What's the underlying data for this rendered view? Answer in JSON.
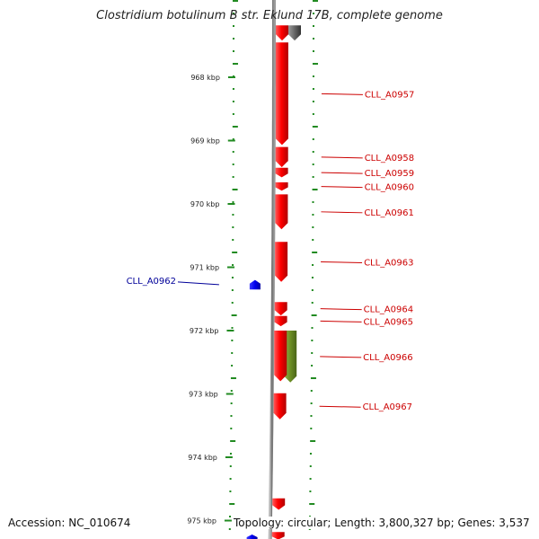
{
  "title": "Clostridium botulinum B str. Eklund 17B, complete genome",
  "footer": {
    "accession": "Accession: NC_010674",
    "summary": "Topology: circular; Length: 3,800,327 bp; Genes: 3,537"
  },
  "colors": {
    "forward_gene": "#ff0000",
    "reverse_gene": "#0000ee",
    "other_gene": "#6b8e23",
    "forward_label": "#cc0000",
    "reverse_label": "#000099",
    "tick": "#228b22",
    "backbone": "#777777"
  },
  "ticks": [
    "968 kbp",
    "969 kbp",
    "970 kbp",
    "971 kbp",
    "972 kbp",
    "973 kbp",
    "974 kbp",
    "975 kbp"
  ],
  "genes": [
    {
      "label": "",
      "strand": "forward",
      "color": "red",
      "start_kbp": 967.18,
      "end_kbp": 967.42
    },
    {
      "label": "",
      "strand": "forward",
      "color": "grey",
      "start_kbp": 967.18,
      "end_kbp": 967.42
    },
    {
      "label": "CLL_A0957",
      "strand": "forward",
      "color": "red",
      "start_kbp": 967.45,
      "end_kbp": 969.07
    },
    {
      "label": "CLL_A0958",
      "strand": "forward",
      "color": "red",
      "start_kbp": 969.1,
      "end_kbp": 969.42
    },
    {
      "label": "CLL_A0959",
      "strand": "forward",
      "color": "red",
      "start_kbp": 969.43,
      "end_kbp": 969.58
    },
    {
      "label": "CLL_A0960",
      "strand": "forward",
      "color": "red",
      "start_kbp": 969.66,
      "end_kbp": 969.79
    },
    {
      "label": "CLL_A0961",
      "strand": "forward",
      "color": "red",
      "start_kbp": 969.85,
      "end_kbp": 970.4
    },
    {
      "label": "CLL_A0962",
      "strand": "reverse",
      "color": "blue",
      "start_kbp": 971.2,
      "end_kbp": 971.35
    },
    {
      "label": "CLL_A0963",
      "strand": "forward",
      "color": "red",
      "start_kbp": 970.6,
      "end_kbp": 971.23
    },
    {
      "label": "CLL_A0964",
      "strand": "forward",
      "color": "red",
      "start_kbp": 971.55,
      "end_kbp": 971.76
    },
    {
      "label": "CLL_A0965",
      "strand": "forward",
      "color": "red",
      "start_kbp": 971.77,
      "end_kbp": 971.93
    },
    {
      "label": "CLL_A0966",
      "strand": "forward",
      "color": "olive",
      "start_kbp": 972.0,
      "end_kbp": 972.82
    },
    {
      "label": "",
      "strand": "forward",
      "color": "red",
      "start_kbp": 972.0,
      "end_kbp": 972.8
    },
    {
      "label": "CLL_A0967",
      "strand": "forward",
      "color": "red",
      "start_kbp": 972.99,
      "end_kbp": 973.4
    },
    {
      "label": "",
      "strand": "forward",
      "color": "red",
      "start_kbp": 974.65,
      "end_kbp": 974.83
    },
    {
      "label": "",
      "strand": "forward",
      "color": "red",
      "start_kbp": 975.18,
      "end_kbp": 975.3
    },
    {
      "label": "",
      "strand": "reverse",
      "color": "blue",
      "start_kbp": 975.22,
      "end_kbp": 975.3
    }
  ]
}
